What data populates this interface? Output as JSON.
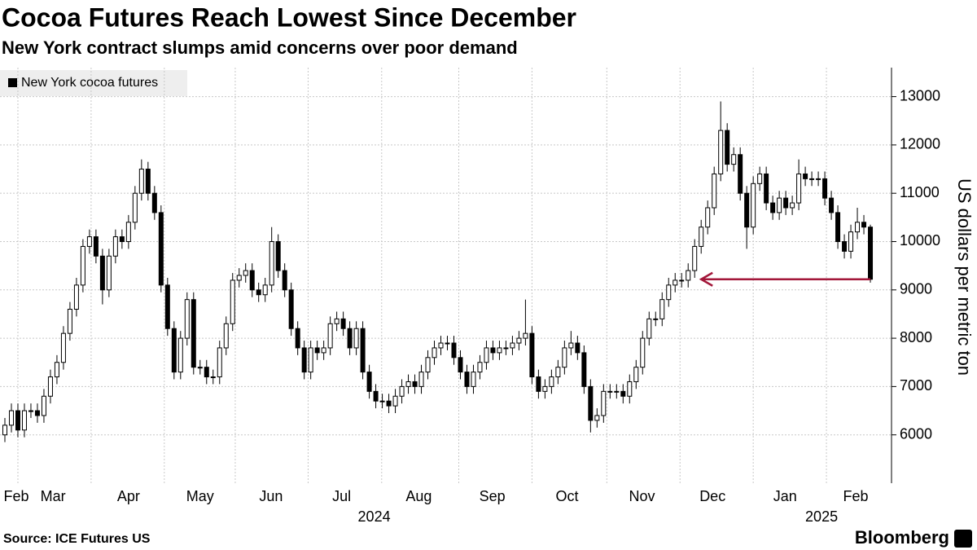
{
  "chart_data": {
    "type": "candlestick",
    "title": "Cocoa Futures Reach Lowest Since December",
    "subtitle": "New York contract slumps amid concerns over poor demand",
    "legend": "New York cocoa futures",
    "y_label": "US dollars per metric ton",
    "source": "Source: ICE Futures US",
    "brand": "Bloomberg",
    "color": "#000000",
    "grid": true,
    "xlim": [
      -0.75,
      136.25
    ],
    "xticks": [
      {
        "value": 1.75,
        "label": "Feb"
      },
      {
        "value": 7.4,
        "label": "Mar"
      },
      {
        "value": 19,
        "label": "Apr"
      },
      {
        "value": 30,
        "label": "May"
      },
      {
        "value": 40.9,
        "label": "Jun"
      },
      {
        "value": 51.75,
        "label": "Jul"
      },
      {
        "value": 63.6,
        "label": "Aug"
      },
      {
        "value": 74.9,
        "label": "Sep"
      },
      {
        "value": 86.4,
        "label": "Oct"
      },
      {
        "value": 97.9,
        "label": "Nov"
      },
      {
        "value": 108.75,
        "label": "Dec"
      },
      {
        "value": 119.9,
        "label": "Jan"
      },
      {
        "value": 130.75,
        "label": "Feb"
      }
    ],
    "xgrid": [
      2,
      13.25,
      24.5,
      35.4,
      46.6,
      57.9,
      69.75,
      81,
      92.5,
      103.75,
      115,
      126.25
    ],
    "years": [
      {
        "value": 56.75,
        "label": "2024"
      },
      {
        "value": 125.5,
        "label": "2025"
      }
    ],
    "ylim": [
      5000,
      13600
    ],
    "yticks": [
      6000,
      7000,
      8000,
      9000,
      10000,
      11000,
      12000,
      13000
    ],
    "annotation": {
      "value": 9220,
      "x": [
        133,
        107
      ],
      "color": "#a3173a"
    },
    "open": [
      6000,
      6200,
      6500,
      6100,
      6500,
      6500,
      6400,
      6800,
      7200,
      7500,
      8100,
      8600,
      9100,
      9900,
      10100,
      9700,
      9000,
      9700,
      10100,
      10000,
      10400,
      11000,
      11500,
      11000,
      10600,
      9100,
      8200,
      7300,
      8000,
      8800,
      7400,
      7400,
      7200,
      7200,
      7800,
      8300,
      9200,
      9300,
      9400,
      9000,
      8900,
      9100,
      10000,
      9400,
      9000,
      8200,
      7800,
      7300,
      7800,
      7700,
      7800,
      8300,
      8400,
      8200,
      7800,
      8200,
      7300,
      6900,
      6700,
      6700,
      6600,
      6800,
      7000,
      7100,
      7000,
      7300,
      7600,
      7800,
      7900,
      7900,
      7600,
      7300,
      7000,
      7300,
      7500,
      7800,
      7700,
      7800,
      7800,
      7900,
      8000,
      8100,
      7200,
      6900,
      7000,
      7200,
      7400,
      7800,
      7900,
      7700,
      7000,
      6300,
      6400,
      6900,
      6900,
      6900,
      6800,
      7100,
      7400,
      8000,
      8400,
      8400,
      8800,
      9100,
      9200,
      9200,
      9400,
      9900,
      10300,
      10700,
      11400,
      12300,
      11600,
      11800,
      11000,
      10300,
      11200,
      11400,
      10800,
      10600,
      10900,
      10700,
      10800,
      11400,
      11300,
      11300,
      11300,
      10900,
      10600,
      10000,
      9800,
      10200,
      10400,
      10300
    ],
    "high": [
      6350,
      6650,
      6650,
      6650,
      6650,
      6650,
      6950,
      7350,
      7650,
      8250,
      8750,
      9250,
      10050,
      10250,
      10250,
      9850,
      9850,
      10250,
      10250,
      10550,
      11150,
      11700,
      11650,
      11150,
      10750,
      9250,
      8350,
      8150,
      8950,
      8950,
      7550,
      7550,
      7350,
      7950,
      8450,
      9350,
      9450,
      9550,
      9550,
      9150,
      9250,
      10300,
      10150,
      9550,
      9150,
      8350,
      7950,
      7950,
      7950,
      7950,
      8450,
      8550,
      8550,
      8350,
      8350,
      8350,
      7450,
      7050,
      6850,
      6850,
      6950,
      7150,
      7250,
      7250,
      7450,
      7750,
      7950,
      8050,
      8050,
      8050,
      7750,
      7450,
      7450,
      7650,
      7950,
      7950,
      7950,
      7950,
      8050,
      8150,
      8800,
      8250,
      7350,
      7150,
      7350,
      7550,
      7950,
      8150,
      8050,
      7850,
      7150,
      6550,
      7050,
      7050,
      7050,
      7050,
      7250,
      7550,
      8150,
      8550,
      8550,
      8950,
      9250,
      9350,
      9350,
      9550,
      10050,
      10450,
      10850,
      11550,
      12900,
      12450,
      11950,
      11950,
      11150,
      11350,
      11550,
      11550,
      10950,
      11050,
      11050,
      10950,
      11700,
      11550,
      11450,
      11450,
      11450,
      11050,
      10750,
      10150,
      10350,
      10700,
      10550,
      10350
    ],
    "low": [
      5850,
      6050,
      5950,
      5950,
      6350,
      6250,
      6250,
      6650,
      7050,
      7350,
      7950,
      8450,
      8950,
      9750,
      9550,
      8700,
      8850,
      9550,
      9850,
      9850,
      10250,
      10850,
      10850,
      10450,
      8950,
      8050,
      7150,
      7150,
      7850,
      7250,
      7250,
      7050,
      7050,
      7050,
      7650,
      8150,
      9050,
      9150,
      8850,
      8750,
      8750,
      8950,
      9250,
      8850,
      8050,
      7650,
      7150,
      7150,
      7550,
      7550,
      7650,
      8150,
      8050,
      7650,
      7650,
      7150,
      6750,
      6550,
      6550,
      6450,
      6450,
      6650,
      6850,
      6850,
      6850,
      7150,
      7450,
      7650,
      7750,
      7450,
      7150,
      6850,
      6850,
      7150,
      7350,
      7550,
      7550,
      7650,
      7650,
      7750,
      7850,
      7050,
      6750,
      6750,
      6850,
      7050,
      7250,
      7650,
      7550,
      6850,
      6050,
      6150,
      6250,
      6750,
      6750,
      6650,
      6650,
      6950,
      7250,
      7850,
      8250,
      8250,
      8650,
      8950,
      9050,
      9050,
      9250,
      9750,
      10150,
      10550,
      11250,
      11450,
      11450,
      10850,
      9850,
      10150,
      11050,
      10650,
      10450,
      10450,
      10550,
      10550,
      10650,
      11150,
      11150,
      11150,
      10750,
      10450,
      9850,
      9650,
      9650,
      10050,
      10150,
      9150
    ],
    "close": [
      6200,
      6500,
      6100,
      6500,
      6500,
      6400,
      6800,
      7200,
      7500,
      8100,
      8600,
      9100,
      9900,
      10100,
      9700,
      9000,
      9700,
      10100,
      10000,
      10400,
      11000,
      11500,
      11000,
      10600,
      9100,
      8200,
      7300,
      8000,
      8800,
      7400,
      7400,
      7200,
      7200,
      7800,
      8300,
      9200,
      9300,
      9400,
      9000,
      8900,
      9100,
      10000,
      9400,
      9000,
      8200,
      7800,
      7300,
      7800,
      7700,
      7800,
      8300,
      8400,
      8200,
      7800,
      8200,
      7300,
      6900,
      6700,
      6700,
      6600,
      6800,
      7000,
      7100,
      7000,
      7300,
      7600,
      7800,
      7900,
      7900,
      7600,
      7300,
      7000,
      7300,
      7500,
      7800,
      7700,
      7800,
      7800,
      7900,
      8000,
      8100,
      7200,
      6900,
      7000,
      7200,
      7400,
      7800,
      7900,
      7700,
      7000,
      6300,
      6400,
      6900,
      6900,
      6900,
      6800,
      7100,
      7400,
      8000,
      8400,
      8400,
      8800,
      9100,
      9200,
      9200,
      9400,
      9900,
      10300,
      10700,
      11400,
      12300,
      11600,
      11800,
      11000,
      10300,
      11200,
      11400,
      10800,
      10600,
      10900,
      10700,
      10800,
      11400,
      11300,
      11300,
      11300,
      10900,
      10600,
      10000,
      9800,
      10200,
      10400,
      10300,
      9220
    ]
  }
}
